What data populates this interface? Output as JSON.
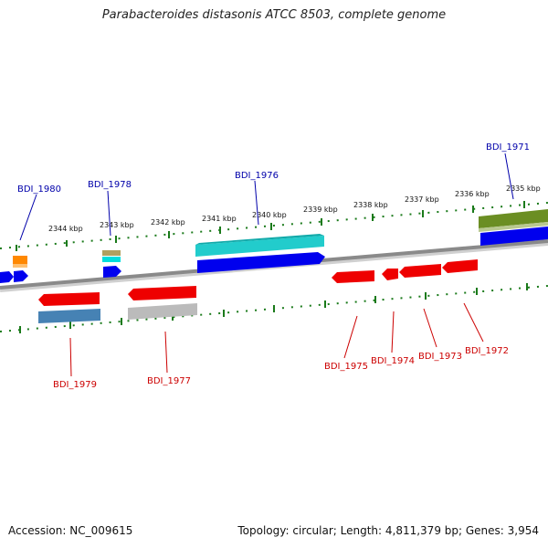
{
  "title": "Parabacteroides distasonis ATCC 8503, complete genome",
  "footer": {
    "accession": "Accession: NC_009615",
    "stats": "Topology: circular; Length: 4,811,379 bp; Genes: 3,954"
  },
  "colors": {
    "backbone": "#8a8a8a",
    "ticks": "#1a7a1a",
    "forward_label": "#0000aa",
    "reverse_label": "#cc0000"
  },
  "kbp_ticks": [
    "2344 kbp",
    "2343 kbp",
    "2342 kbp",
    "2341 kbp",
    "2340 kbp",
    "2339 kbp",
    "2338 kbp",
    "2337 kbp",
    "2336 kbp",
    "2335 kbp"
  ],
  "gene_labels": {
    "top": [
      "BDI_1980",
      "BDI_1978",
      "BDI_1976",
      "BDI_1971"
    ],
    "bottom": [
      "BDI_1979",
      "BDI_1977",
      "BDI_1975",
      "BDI_1974",
      "BDI_1973",
      "BDI_1972"
    ]
  }
}
